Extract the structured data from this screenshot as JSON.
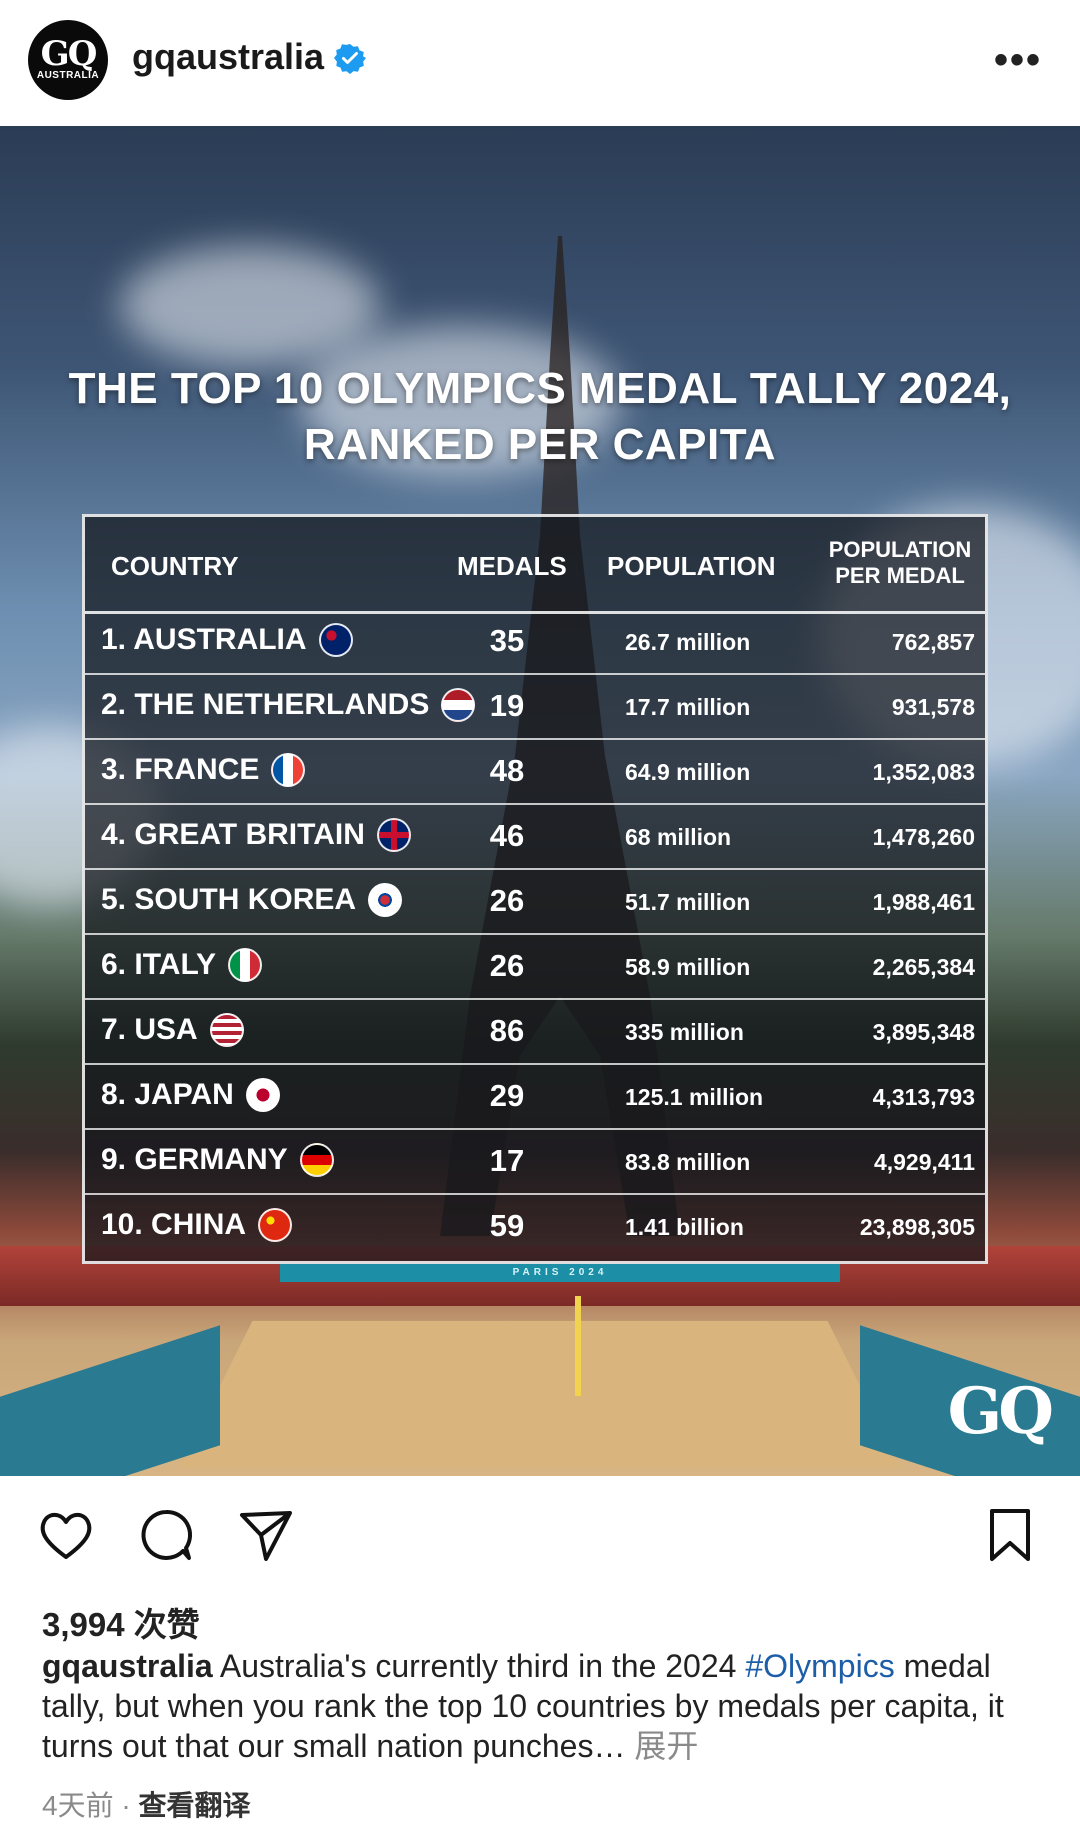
{
  "header": {
    "avatar_text": "GQ",
    "avatar_sub": "AUSTRALIA",
    "username": "gqaustralia",
    "more": "•••"
  },
  "post": {
    "title_line1": "THE TOP 10 OLYMPICS MEDAL TALLY 2024,",
    "title_line2": "RANKED PER CAPITA",
    "columns": {
      "country": "COUNTRY",
      "medals": "MEDALS",
      "population": "POPULATION",
      "ppm_line1": "POPULATION",
      "ppm_line2": "PER MEDAL"
    },
    "rows": [
      {
        "country": "1. AUSTRALIA",
        "medals": "35",
        "population": "26.7 million",
        "ppm": "762,857"
      },
      {
        "country": "2. THE NETHERLANDS",
        "medals": "19",
        "population": "17.7 million",
        "ppm": "931,578"
      },
      {
        "country": "3. FRANCE",
        "medals": "48",
        "population": "64.9 million",
        "ppm": "1,352,083"
      },
      {
        "country": "4. GREAT BRITAIN",
        "medals": "46",
        "population": "68 million",
        "ppm": "1,478,260"
      },
      {
        "country": "5. SOUTH KOREA",
        "medals": "26",
        "population": "51.7 million",
        "ppm": "1,988,461"
      },
      {
        "country": "6. ITALY",
        "medals": "26",
        "population": "58.9 million",
        "ppm": "2,265,384"
      },
      {
        "country": "7. USA",
        "medals": "86",
        "population": "335 million",
        "ppm": "3,895,348"
      },
      {
        "country": "8. JAPAN",
        "medals": "29",
        "population": "125.1 million",
        "ppm": "4,313,793"
      },
      {
        "country": "9. GERMANY",
        "medals": "17",
        "population": "83.8 million",
        "ppm": "4,929,411"
      },
      {
        "country": "10. CHINA",
        "medals": "59",
        "population": "1.41 billion",
        "ppm": "23,898,305"
      }
    ],
    "banner": "PARIS 2024",
    "watermark": "GQ"
  },
  "actions": {
    "likes": "3,994 次赞"
  },
  "caption": {
    "username": "gqaustralia",
    "text1": " Australia's currently third in the 2024 ",
    "hashtag": "#Olympics",
    "text2": " medal tally, but when you rank the top 10 countries by medals per capita, it turns out that our small nation punches… ",
    "more": "展开"
  },
  "footer": {
    "time": "4天前",
    "separator": " · ",
    "translate": "查看翻译"
  },
  "colors": {
    "link": "#1d5ea8",
    "verified": "#1d9bf0"
  }
}
